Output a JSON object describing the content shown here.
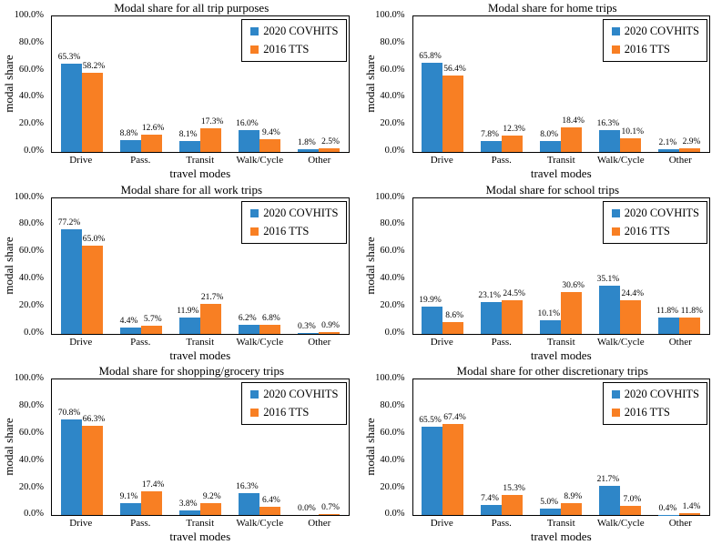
{
  "colors": {
    "series": [
      "#2E86C8",
      "#F87F23"
    ],
    "axis": "#000000",
    "background": "#FFFFFF",
    "text": "#000000"
  },
  "chart_data": [
    {
      "type": "bar",
      "title": "Modal share for all trip purposes",
      "xlabel": "travel modes",
      "ylabel": "modal share",
      "ylim": [
        0,
        100
      ],
      "ytick_labels": [
        "100.0%",
        "80.0%",
        "60.0%",
        "40.0%",
        "20.0%",
        "0.0%"
      ],
      "grid": false,
      "legend_position": "top-right",
      "categories": [
        "Drive",
        "Pass.",
        "Transit",
        "Walk/Cycle",
        "Other"
      ],
      "series": [
        {
          "name": "2020 COVHITS",
          "values": [
            65.3,
            8.8,
            8.1,
            16.0,
            1.8
          ],
          "labels": [
            "65.3%",
            "8.8%",
            "8.1%",
            "16.0%",
            "1.8%"
          ]
        },
        {
          "name": "2016 TTS",
          "values": [
            58.2,
            12.6,
            17.3,
            9.4,
            2.5
          ],
          "labels": [
            "58.2%",
            "12.6%",
            "17.3%",
            "9.4%",
            "2.5%"
          ]
        }
      ]
    },
    {
      "type": "bar",
      "title": "Modal share for home trips",
      "xlabel": "travel modes",
      "ylabel": "modal share",
      "ylim": [
        0,
        100
      ],
      "ytick_labels": [
        "100.0%",
        "80.0%",
        "60.0%",
        "40.0%",
        "20.0%",
        "0.0%"
      ],
      "grid": false,
      "legend_position": "top-right",
      "categories": [
        "Drive",
        "Pass.",
        "Transit",
        "Walk/Cycle",
        "Other"
      ],
      "series": [
        {
          "name": "2020 COVHITS",
          "values": [
            65.8,
            7.8,
            8.0,
            16.3,
            2.1
          ],
          "labels": [
            "65.8%",
            "7.8%",
            "8.0%",
            "16.3%",
            "2.1%"
          ]
        },
        {
          "name": "2016 TTS",
          "values": [
            56.4,
            12.3,
            18.4,
            10.1,
            2.9
          ],
          "labels": [
            "56.4%",
            "12.3%",
            "18.4%",
            "10.1%",
            "2.9%"
          ]
        }
      ]
    },
    {
      "type": "bar",
      "title": "Modal share for all work trips",
      "xlabel": "travel modes",
      "ylabel": "modal share",
      "ylim": [
        0,
        100
      ],
      "ytick_labels": [
        "100.0%",
        "80.0%",
        "60.0%",
        "40.0%",
        "20.0%",
        "0.0%"
      ],
      "grid": false,
      "legend_position": "top-right",
      "categories": [
        "Drive",
        "Pass.",
        "Transit",
        "Walk/Cycle",
        "Other"
      ],
      "series": [
        {
          "name": "2020 COVHITS",
          "values": [
            77.2,
            4.4,
            11.9,
            6.2,
            0.3
          ],
          "labels": [
            "77.2%",
            "4.4%",
            "11.9%",
            "6.2%",
            "0.3%"
          ]
        },
        {
          "name": "2016 TTS",
          "values": [
            65.0,
            5.7,
            21.7,
            6.8,
            0.9
          ],
          "labels": [
            "65.0%",
            "5.7%",
            "21.7%",
            "6.8%",
            "0.9%"
          ]
        }
      ]
    },
    {
      "type": "bar",
      "title": "Modal share for school trips",
      "xlabel": "travel modes",
      "ylabel": "modal share",
      "ylim": [
        0,
        100
      ],
      "ytick_labels": [
        "100.0%",
        "80.0%",
        "60.0%",
        "40.0%",
        "20.0%",
        "0.0%"
      ],
      "grid": false,
      "legend_position": "top-right",
      "categories": [
        "Drive",
        "Pass.",
        "Transit",
        "Walk/Cycle",
        "Other"
      ],
      "series": [
        {
          "name": "2020 COVHITS",
          "values": [
            19.9,
            23.1,
            10.1,
            35.1,
            11.8
          ],
          "labels": [
            "19.9%",
            "23.1%",
            "10.1%",
            "35.1%",
            "11.8%"
          ]
        },
        {
          "name": "2016 TTS",
          "values": [
            8.6,
            24.5,
            30.6,
            24.4,
            11.8
          ],
          "labels": [
            "8.6%",
            "24.5%",
            "30.6%",
            "24.4%",
            "11.8%"
          ]
        }
      ]
    },
    {
      "type": "bar",
      "title": "Modal share for shopping/grocery trips",
      "xlabel": "travel modes",
      "ylabel": "modal share",
      "ylim": [
        0,
        100
      ],
      "ytick_labels": [
        "100.0%",
        "80.0%",
        "60.0%",
        "40.0%",
        "20.0%",
        "0.0%"
      ],
      "grid": false,
      "legend_position": "top-right",
      "categories": [
        "Drive",
        "Pass.",
        "Transit",
        "Walk/Cycle",
        "Other"
      ],
      "series": [
        {
          "name": "2020 COVHITS",
          "values": [
            70.8,
            9.1,
            3.8,
            16.3,
            0.0
          ],
          "labels": [
            "70.8%",
            "9.1%",
            "3.8%",
            "16.3%",
            "0.0%"
          ]
        },
        {
          "name": "2016 TTS",
          "values": [
            66.3,
            17.4,
            9.2,
            6.4,
            0.7
          ],
          "labels": [
            "66.3%",
            "17.4%",
            "9.2%",
            "6.4%",
            "0.7%"
          ]
        }
      ]
    },
    {
      "type": "bar",
      "title": "Modal share for other discretionary trips",
      "xlabel": "travel modes",
      "ylabel": "modal share",
      "ylim": [
        0,
        100
      ],
      "ytick_labels": [
        "100.0%",
        "80.0%",
        "60.0%",
        "40.0%",
        "20.0%",
        "0.0%"
      ],
      "grid": false,
      "legend_position": "top-right",
      "categories": [
        "Drive",
        "Pass.",
        "Transit",
        "Walk/Cycle",
        "Other"
      ],
      "series": [
        {
          "name": "2020 COVHITS",
          "values": [
            65.5,
            7.4,
            5.0,
            21.7,
            0.4
          ],
          "labels": [
            "65.5%",
            "7.4%",
            "5.0%",
            "21.7%",
            "0.4%"
          ]
        },
        {
          "name": "2016 TTS",
          "values": [
            67.4,
            15.3,
            8.9,
            7.0,
            1.4
          ],
          "labels": [
            "67.4%",
            "15.3%",
            "8.9%",
            "7.0%",
            "1.4%"
          ]
        }
      ]
    }
  ]
}
